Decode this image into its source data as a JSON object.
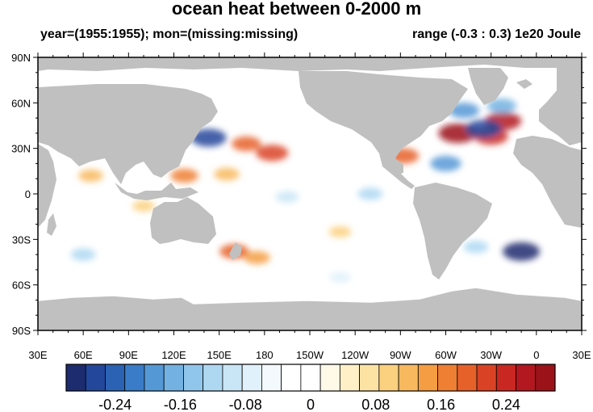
{
  "title": "ocean heat between 0-2000 m",
  "subtitle_left": "year=(1955:1955); mon=(missing:missing)",
  "subtitle_right": "range (-0.3 : 0.3) 1e20 Joule",
  "chart_data": {
    "type": "heatmap",
    "projection": "cylindrical equidistant",
    "lon_range": [
      30,
      390
    ],
    "lat_range": [
      -90,
      90
    ],
    "x_ticks": [
      "30E",
      "60E",
      "90E",
      "120E",
      "150E",
      "180",
      "150W",
      "120W",
      "90W",
      "60W",
      "30W",
      "0",
      "30E"
    ],
    "y_ticks": [
      "90N",
      "60N",
      "30N",
      "0",
      "30S",
      "60S",
      "90S"
    ],
    "value_range": [
      -0.3,
      0.3
    ],
    "units": "1e20 Joule",
    "land_color": "#c0c0c0",
    "missing_color": "#ffffff",
    "colorbar": {
      "labels": [
        "-0.24",
        "-0.16",
        "-0.08",
        "0",
        "0.08",
        "0.16",
        "0.24"
      ],
      "colors": [
        "#1c2c6e",
        "#23479a",
        "#2b62b4",
        "#3a7cc8",
        "#5598d6",
        "#73b1e2",
        "#91c6ec",
        "#aed8f2",
        "#c9e6f6",
        "#e1f1fb",
        "#f3f9fd",
        "#ffffff",
        "#ffffff",
        "#fff9e8",
        "#fff0c8",
        "#fde3a3",
        "#fbd07e",
        "#f8b85e",
        "#f49d42",
        "#ef7f33",
        "#e6612a",
        "#da4225",
        "#c92822",
        "#b3171f",
        "#9c1219"
      ]
    },
    "anomalies": [
      {
        "region": "Kuroshio east of Japan",
        "lon": 143,
        "lat": 37,
        "value": -0.26
      },
      {
        "region": "North Pacific",
        "lon": 168,
        "lat": 33,
        "value": 0.18
      },
      {
        "region": "North Pacific",
        "lon": 185,
        "lat": 27,
        "value": 0.22
      },
      {
        "region": "Western tropical Pacific",
        "lon": 127,
        "lat": 12,
        "value": 0.16
      },
      {
        "region": "Philippine Sea",
        "lon": 155,
        "lat": 13,
        "value": 0.13
      },
      {
        "region": "Equatorial Pacific",
        "lon": 250,
        "lat": 0,
        "value": -0.12
      },
      {
        "region": "Equatorial Pacific",
        "lon": 195,
        "lat": -2,
        "value": -0.1
      },
      {
        "region": "Gulf of Mexico",
        "lon": 272,
        "lat": 25,
        "value": 0.2
      },
      {
        "region": "Gulf Stream",
        "lon": 308,
        "lat": 40,
        "value": 0.3
      },
      {
        "region": "North Atlantic",
        "lon": 330,
        "lat": 38,
        "value": 0.24
      },
      {
        "region": "North Atlantic",
        "lon": 338,
        "lat": 48,
        "value": 0.27
      },
      {
        "region": "Labrador Sea",
        "lon": 312,
        "lat": 55,
        "value": -0.2
      },
      {
        "region": "North Atlantic",
        "lon": 325,
        "lat": 43,
        "value": -0.26
      },
      {
        "region": "Iceland basin",
        "lon": 337,
        "lat": 58,
        "value": -0.18
      },
      {
        "region": "Western Atlantic",
        "lon": 300,
        "lat": 20,
        "value": -0.2
      },
      {
        "region": "South Atlantic",
        "lon": 350,
        "lat": -38,
        "value": -0.28
      },
      {
        "region": "South Atlantic",
        "lon": 320,
        "lat": -35,
        "value": -0.12
      },
      {
        "region": "Tasman Sea",
        "lon": 160,
        "lat": -38,
        "value": 0.18
      },
      {
        "region": "South Pacific",
        "lon": 175,
        "lat": -42,
        "value": 0.14
      },
      {
        "region": "Arabian Sea",
        "lon": 65,
        "lat": 12,
        "value": 0.12
      },
      {
        "region": "Indian Ocean",
        "lon": 100,
        "lat": -8,
        "value": 0.09
      },
      {
        "region": "Southern Indian Ocean",
        "lon": 60,
        "lat": -40,
        "value": -0.12
      },
      {
        "region": "Southern Ocean",
        "lon": 230,
        "lat": -55,
        "value": -0.08
      },
      {
        "region": "Eastern Pacific",
        "lon": 230,
        "lat": -25,
        "value": 0.09
      }
    ]
  }
}
